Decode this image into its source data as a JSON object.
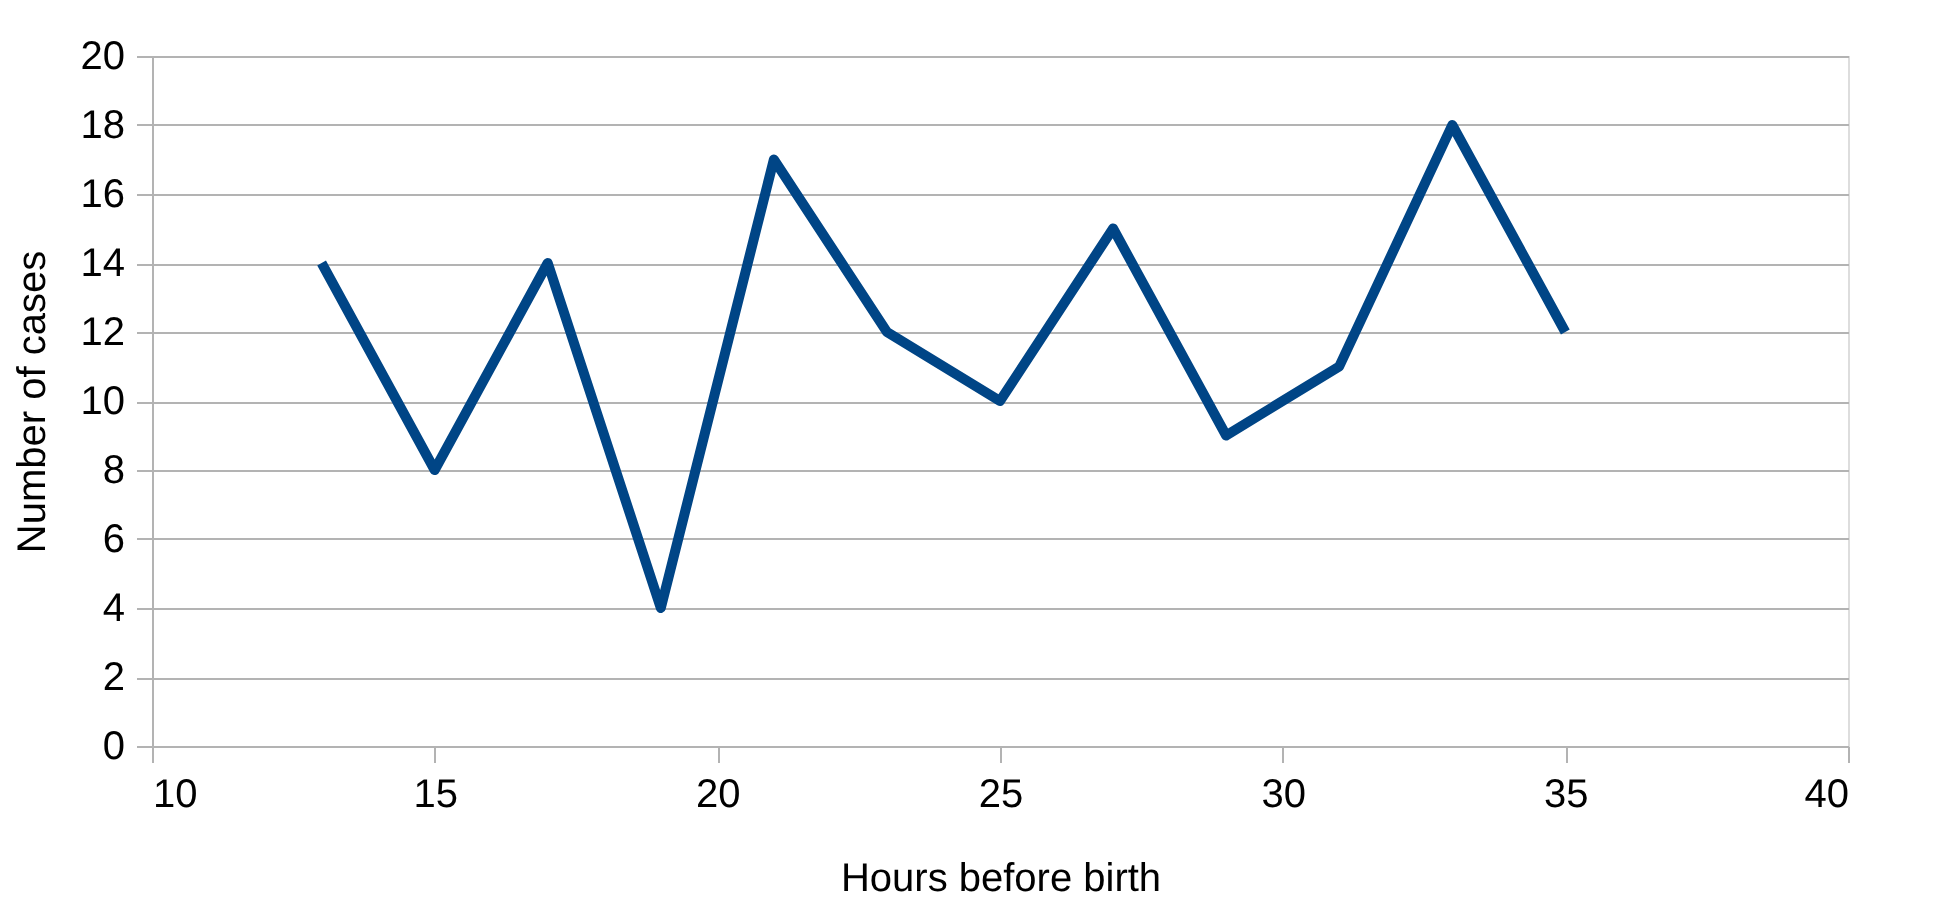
{
  "chart_data": {
    "type": "line",
    "xlabel": "Hours before birth",
    "ylabel": "Number of cases",
    "x": [
      13,
      15,
      17,
      19,
      21,
      23,
      25,
      27,
      29,
      31,
      33,
      35
    ],
    "series": [
      {
        "color": "#004586",
        "values": [
          14,
          8,
          14,
          4,
          17,
          12,
          10,
          15,
          9,
          11,
          18,
          12
        ]
      }
    ],
    "xlim": [
      10,
      40
    ],
    "xticks": [
      10,
      15,
      20,
      25,
      30,
      35,
      40
    ],
    "ylim": [
      0,
      20
    ],
    "yticks": [
      0,
      2,
      4,
      6,
      8,
      10,
      12,
      14,
      16,
      18,
      20
    ],
    "grid": "y",
    "marker": "none",
    "line_style": "solid"
  }
}
